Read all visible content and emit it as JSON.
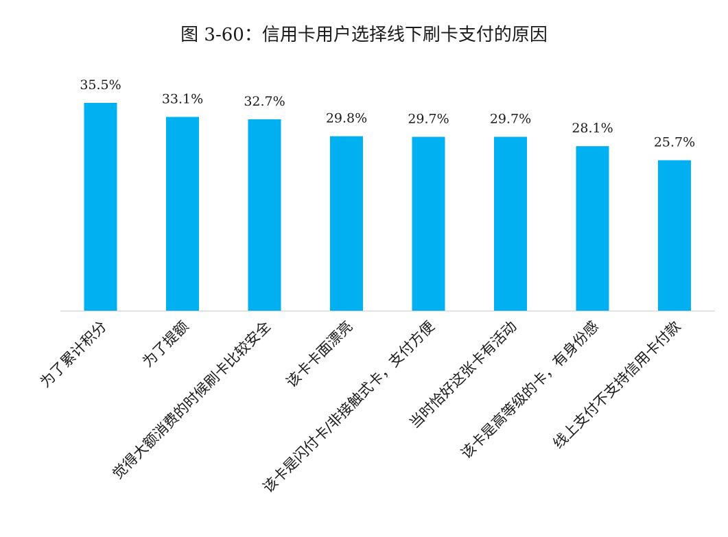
{
  "chart_data": {
    "type": "bar",
    "title": "图 3-60：信用卡用户选择线下刷卡支付的原因",
    "categories": [
      "为了累计积分",
      "为了提额",
      "觉得大额消费的时候刷卡比较安全",
      "该卡卡面漂亮",
      "该卡是闪付卡/非接触式卡，支付方便",
      "当时恰好这张卡有活动",
      "该卡是高等级的卡，有身份感",
      "线上支付不支持信用卡付款"
    ],
    "values": [
      35.5,
      33.1,
      32.7,
      29.8,
      29.7,
      29.7,
      28.1,
      25.7
    ],
    "data_labels": [
      "35.5%",
      "33.1%",
      "32.7%",
      "29.8%",
      "29.7%",
      "29.7%",
      "28.1%",
      "25.7%"
    ],
    "unit": "%",
    "ylim": [
      0,
      35.5
    ],
    "grid": false,
    "legend": "none",
    "bar_color": "#00B0F0",
    "axis_color": "#d0d0d0"
  }
}
